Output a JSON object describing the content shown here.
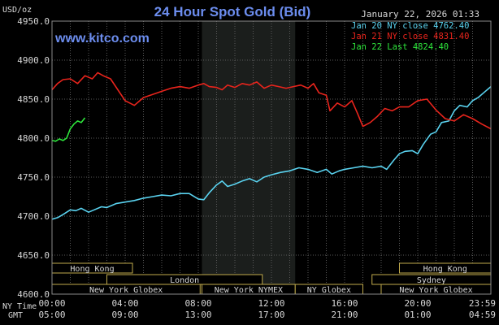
{
  "header": {
    "title": "24 Hour Spot Gold (Bid)",
    "unit": "USD/oz",
    "date": "January 22, 2026 01:33",
    "watermark": "www.kitco.com"
  },
  "axis_labels": {
    "ny_time": "NY Time",
    "gmt": "GMT"
  },
  "colors": {
    "background": "#000000",
    "night_shading": "#1b1e1c",
    "grid": "#5a5a5a",
    "title": "#6c8dee",
    "text": "#d8d8d8",
    "session_box": "#c0aa4c",
    "jan20": "#5ad3f0",
    "jan21": "#e8241c",
    "jan22": "#2ee63c"
  },
  "chart_data": {
    "type": "line",
    "title": "24 Hour Spot Gold (Bid)",
    "ylabel": "USD/oz",
    "ylim": [
      4600,
      4950
    ],
    "y_ticks": [
      "4950.0",
      "4900.0",
      "4850.0",
      "4800.0",
      "4750.0",
      "4700.0",
      "4650.0",
      "4600.0"
    ],
    "y_tick_values": [
      4950,
      4900,
      4850,
      4800,
      4750,
      4700,
      4650,
      4600
    ],
    "x_range_hours": [
      0,
      24
    ],
    "x_ticks_ny": [
      "00:00",
      "04:00",
      "08:00",
      "12:00",
      "16:00",
      "20:00",
      "23:59"
    ],
    "x_ticks_gmt": [
      "05:00",
      "09:00",
      "13:00",
      "17:00",
      "21:00",
      "01:00",
      "04:59"
    ],
    "x_tick_hours": [
      0,
      4,
      8,
      12,
      16,
      20,
      24
    ],
    "grid": true,
    "legend_position": "top-right",
    "shaded_hours": [
      8.2,
      13.3
    ],
    "series": [
      {
        "name": "Jan 20 NY close 4762.40",
        "color": "#5ad3f0",
        "x": [
          0,
          0.3,
          0.6,
          1.0,
          1.3,
          1.6,
          2.0,
          2.3,
          2.7,
          3.0,
          3.5,
          4.0,
          4.5,
          5.0,
          5.5,
          6.0,
          6.5,
          7.0,
          7.5,
          8.0,
          8.3,
          8.6,
          9.0,
          9.3,
          9.6,
          10.0,
          10.4,
          10.8,
          11.2,
          11.6,
          12.0,
          12.5,
          13.0,
          13.5,
          14.0,
          14.5,
          15.0,
          15.3,
          15.7,
          16.0,
          16.5,
          17.0,
          17.5,
          18.0,
          18.3,
          18.7,
          19.0,
          19.3,
          19.7,
          20.0,
          20.3,
          20.7,
          21.0,
          21.3,
          21.7,
          22.0,
          22.3,
          22.7,
          23.0,
          23.3,
          23.6,
          24.0
        ],
        "values": [
          4696,
          4698,
          4702,
          4708,
          4707,
          4710,
          4705,
          4708,
          4712,
          4711,
          4716,
          4718,
          4720,
          4723,
          4725,
          4727,
          4726,
          4729,
          4729,
          4722,
          4721,
          4730,
          4740,
          4745,
          4738,
          4741,
          4745,
          4748,
          4744,
          4750,
          4753,
          4756,
          4758,
          4762,
          4760,
          4756,
          4760,
          4754,
          4758,
          4760,
          4762,
          4764,
          4762,
          4764,
          4760,
          4772,
          4780,
          4783,
          4784,
          4780,
          4792,
          4805,
          4808,
          4820,
          4822,
          4835,
          4842,
          4840,
          4848,
          4852,
          4858,
          4866
        ]
      },
      {
        "name": "Jan 21 NY close 4831.40",
        "color": "#e8241c",
        "x": [
          0,
          0.3,
          0.6,
          1.0,
          1.4,
          1.8,
          2.2,
          2.5,
          2.8,
          3.2,
          3.6,
          4.0,
          4.5,
          5.0,
          5.5,
          6.0,
          6.5,
          7.0,
          7.5,
          8.0,
          8.3,
          8.6,
          9.0,
          9.3,
          9.6,
          10.0,
          10.4,
          10.8,
          11.2,
          11.6,
          12.0,
          12.4,
          12.8,
          13.2,
          13.6,
          14.0,
          14.3,
          14.6,
          15.0,
          15.2,
          15.6,
          16.0,
          16.4,
          16.7,
          17.0,
          17.4,
          17.8,
          18.2,
          18.6,
          19.0,
          19.5,
          20.0,
          20.5,
          21.0,
          21.5,
          22.0,
          22.5,
          23.0,
          23.5,
          24.0
        ],
        "values": [
          4862,
          4870,
          4875,
          4876,
          4870,
          4880,
          4876,
          4884,
          4880,
          4876,
          4862,
          4848,
          4842,
          4852,
          4856,
          4860,
          4864,
          4866,
          4864,
          4868,
          4870,
          4866,
          4865,
          4862,
          4868,
          4865,
          4870,
          4868,
          4872,
          4864,
          4868,
          4866,
          4864,
          4866,
          4868,
          4864,
          4870,
          4858,
          4855,
          4835,
          4845,
          4840,
          4848,
          4832,
          4815,
          4820,
          4828,
          4838,
          4835,
          4840,
          4840,
          4848,
          4850,
          4836,
          4825,
          4822,
          4830,
          4825,
          4818,
          4812
        ]
      },
      {
        "name": "Jan 22 Last 4824.40",
        "color": "#2ee63c",
        "x": [
          0,
          0.2,
          0.4,
          0.6,
          0.8,
          1.0,
          1.2,
          1.4,
          1.6,
          1.8
        ],
        "values": [
          4797,
          4796,
          4799,
          4797,
          4800,
          4812,
          4818,
          4822,
          4820,
          4826
        ]
      }
    ]
  },
  "sessions": [
    {
      "label": "Hong Kong",
      "start_hour": 0,
      "end_hour": 4.4,
      "row": 0,
      "dashed_end": false
    },
    {
      "label": "Hong Kong",
      "start_hour": 19.0,
      "end_hour": 24,
      "row": 0,
      "dashed_end": true
    },
    {
      "label": "Sydney",
      "start_hour": 17.5,
      "end_hour": 24,
      "row": 1,
      "dashed_end": true
    },
    {
      "label": "London",
      "start_hour": 3.0,
      "end_hour": 11.5,
      "row": 1,
      "dashed_end": false
    },
    {
      "label": "New York Globex",
      "start_hour": 0,
      "end_hour": 8.1,
      "row": 2,
      "dashed_end": false
    },
    {
      "label": "New York NYMEX",
      "start_hour": 8.2,
      "end_hour": 13.3,
      "row": 2,
      "dashed_end": false
    },
    {
      "label": "NY Globex",
      "start_hour": 13.3,
      "end_hour": 17.0,
      "row": 2,
      "dashed_end": false
    },
    {
      "label": "New York Globex",
      "start_hour": 18.0,
      "end_hour": 24,
      "row": 2,
      "dashed_end": true
    }
  ]
}
